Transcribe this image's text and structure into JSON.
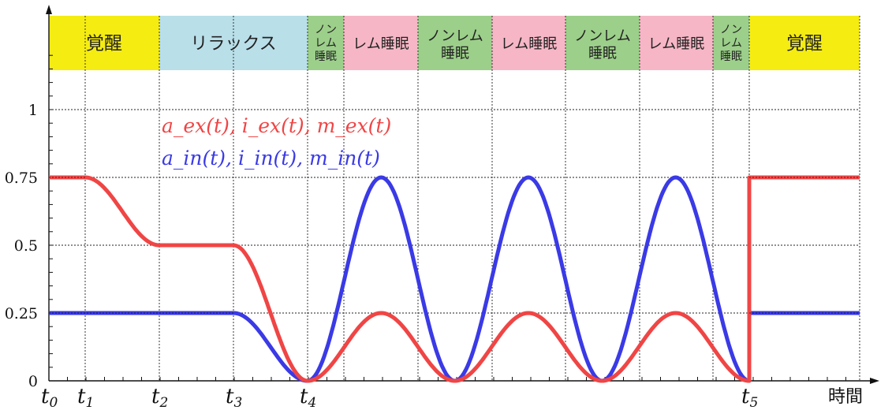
{
  "chart_data": {
    "type": "line",
    "xlabel": "時間",
    "ylabel": "",
    "ylim": [
      0,
      1
    ],
    "yticks": [
      {
        "value": 0,
        "label": "0"
      },
      {
        "value": 0.25,
        "label": "0.25"
      },
      {
        "value": 0.5,
        "label": "0.5"
      },
      {
        "value": 0.75,
        "label": "0.75"
      },
      {
        "value": 1,
        "label": "1"
      }
    ],
    "xticks": [
      {
        "base": "t",
        "sub": "0"
      },
      {
        "base": "t",
        "sub": "1"
      },
      {
        "base": "t",
        "sub": "2"
      },
      {
        "base": "t",
        "sub": "3"
      },
      {
        "base": "t",
        "sub": "4"
      },
      {
        "base": "t",
        "sub": "5"
      }
    ],
    "phases": [
      {
        "label": "覚醒",
        "color": "#f5ec12"
      },
      {
        "label": "リラックス",
        "color": "#b9dfe9"
      },
      {
        "label": "ノンレム睡眠",
        "color": "#9ccf8a"
      },
      {
        "label": "レム睡眠",
        "color": "#f6b6c6"
      },
      {
        "label": "ノンレム睡眠",
        "color": "#9ccf8a"
      },
      {
        "label": "レム睡眠",
        "color": "#f6b6c6"
      },
      {
        "label": "ノンレム睡眠",
        "color": "#9ccf8a"
      },
      {
        "label": "レム睡眠",
        "color": "#f6b6c6"
      },
      {
        "label": "ノンレム睡眠",
        "color": "#9ccf8a"
      },
      {
        "label": "覚醒",
        "color": "#f5ec12"
      }
    ],
    "series": [
      {
        "name": "a_ex(t), i_ex(t), m_ex(t)",
        "color": "#f04545",
        "values_description": [
          {
            "segment": "t0–t1",
            "value": 0.75
          },
          {
            "segment": "t1–t2",
            "from": 0.75,
            "to": 0.5
          },
          {
            "segment": "t2–t3",
            "value": 0.5
          },
          {
            "segment": "t3–t4",
            "from": 0.5,
            "to": 0
          },
          {
            "segment": "t4–t5",
            "oscillation_min": 0,
            "oscillation_max": 0.25,
            "peaks": 3
          },
          {
            "segment": "after t5",
            "value": 0.75
          }
        ]
      },
      {
        "name": "a_in(t), i_in(t), m_in(t)",
        "color": "#3a3ae6",
        "values_description": [
          {
            "segment": "t0–t3",
            "value": 0.25
          },
          {
            "segment": "t3–t4",
            "from": 0.25,
            "to": 0
          },
          {
            "segment": "t4–t5",
            "oscillation_min": 0,
            "oscillation_max": 0.75,
            "peaks": 3
          },
          {
            "segment": "after t5",
            "value": 0.25
          }
        ]
      }
    ],
    "grid": true
  }
}
